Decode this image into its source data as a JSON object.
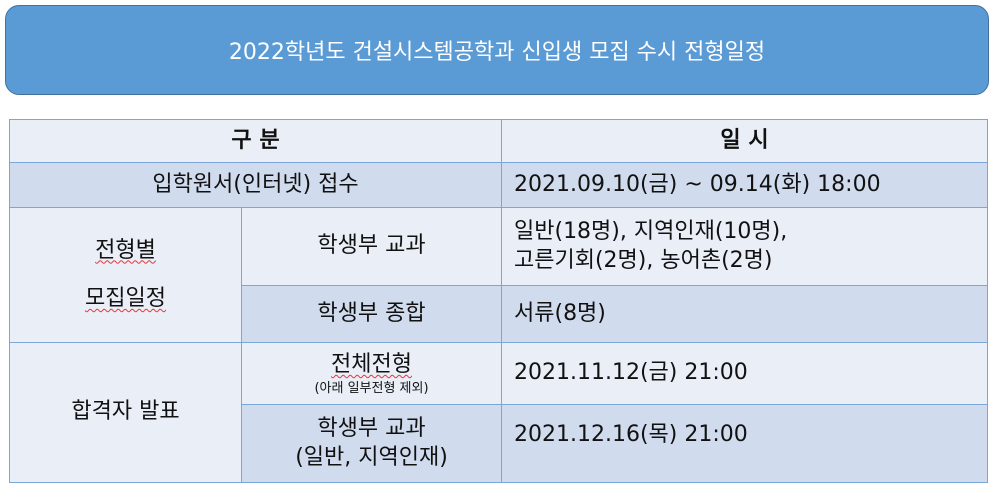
{
  "title": "2022학년도 건설시스템공학과 신입생 모집 수시 전형일정",
  "table": {
    "headers": [
      "구 분",
      "일 시"
    ],
    "application": {
      "label": "입학원서(인터넷) 접수",
      "date": "2021.09.10(금) ~ 09.14(화) 18:00"
    },
    "schedule_group": {
      "label_line1": "전형별",
      "label_line2": "모집일정",
      "rows": [
        {
          "type": "학생부 교과",
          "detail_line1": "일반(18명), 지역인재(10명),",
          "detail_line2": "고른기회(2명), 농어촌(2명)"
        },
        {
          "type": "학생부 종합",
          "detail_line1": "서류(8명)"
        }
      ]
    },
    "announcement_group": {
      "label": "합격자 발표",
      "rows": [
        {
          "type": "전체전형",
          "note": "(아래 일부전형 제외)",
          "date": "2021.11.12(금) 21:00"
        },
        {
          "type": "학생부 교과",
          "note": "(일반, 지역인재)",
          "date": "2021.12.16(목) 21:00"
        }
      ]
    }
  },
  "colors": {
    "banner": "#5b9bd5",
    "row_light": "#e9eef7",
    "row_dark": "#d0dcee",
    "border": "#7aa7d8"
  }
}
